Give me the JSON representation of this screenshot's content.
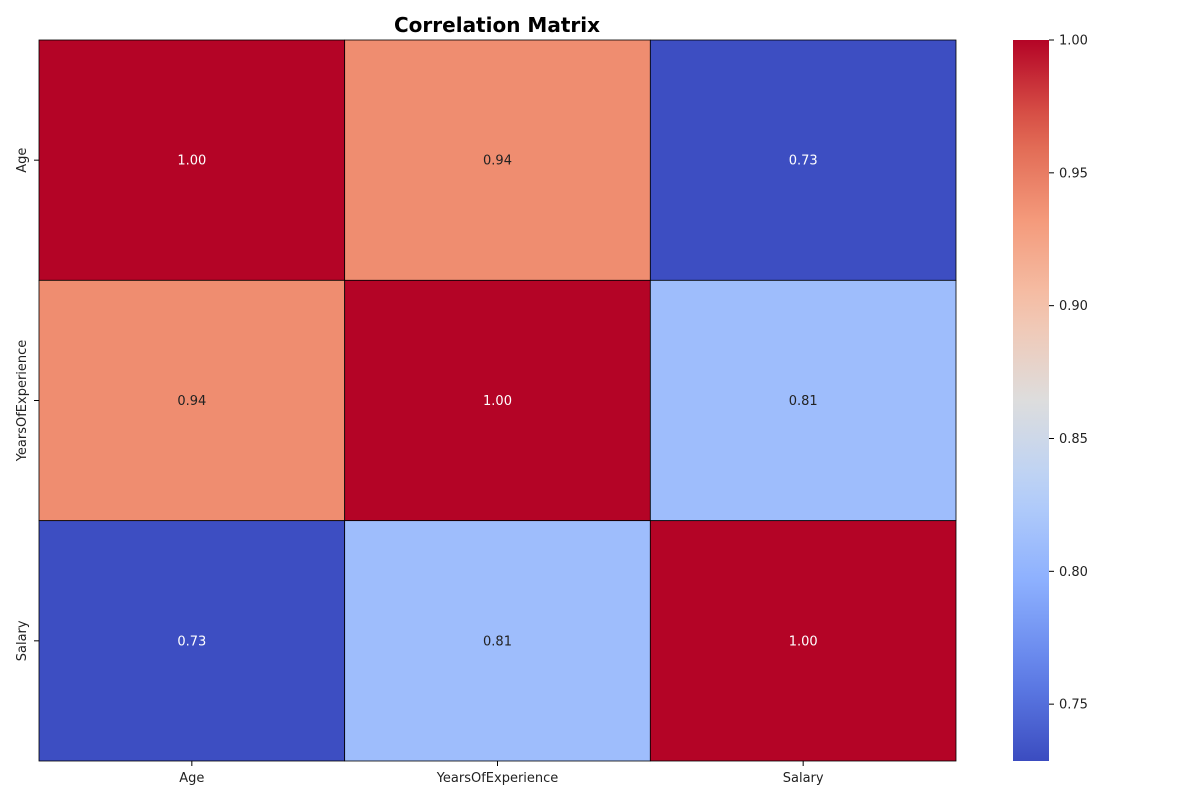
{
  "chart_data": {
    "type": "heatmap",
    "title": "Correlation Matrix",
    "x_categories": [
      "Age",
      "YearsOfExperience",
      "Salary"
    ],
    "y_categories": [
      "Age",
      "YearsOfExperience",
      "Salary"
    ],
    "values": [
      [
        1.0,
        0.94,
        0.73
      ],
      [
        0.94,
        1.0,
        0.81
      ],
      [
        0.73,
        0.81,
        1.0
      ]
    ],
    "value_format": "0.00",
    "colormap": "coolwarm",
    "colorbar": {
      "min": 0.7286,
      "max": 1.0,
      "ticks": [
        0.75,
        0.8,
        0.85,
        0.9,
        0.95,
        1.0
      ],
      "tick_labels": [
        "0.75",
        "0.80",
        "0.85",
        "0.90",
        "0.95",
        "1.00"
      ],
      "placement": "right"
    },
    "cell_border_color": "#000000",
    "grid": false
  }
}
